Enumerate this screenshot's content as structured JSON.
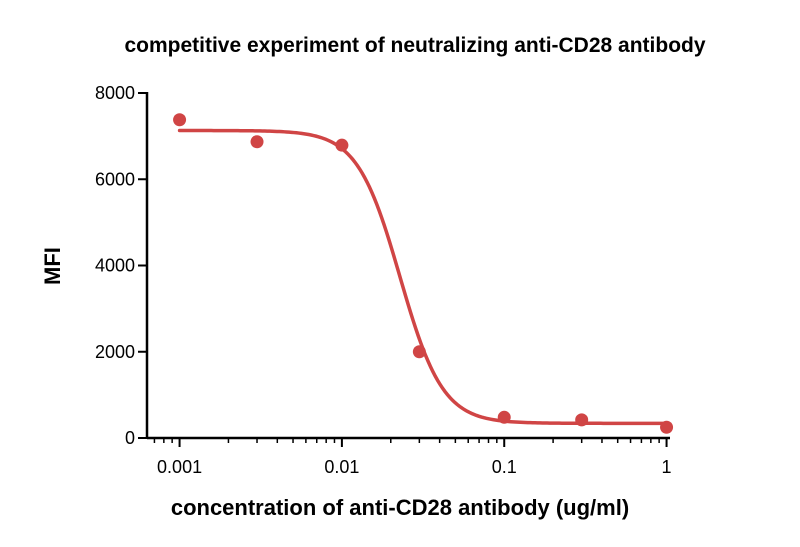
{
  "chart_data": {
    "type": "scatter",
    "title": "competitive experiment of neutralizing anti-CD28 antibody",
    "xlabel": "concentration of anti-CD28 antibody (ug/ml)",
    "ylabel": "MFI",
    "x_scale": "log",
    "xlim": [
      0.00063,
      1.05
    ],
    "ylim": [
      0,
      8000
    ],
    "x_ticks": [
      0.001,
      0.01,
      0.1,
      1
    ],
    "x_tick_labels": [
      "0.001",
      "0.01",
      "0.1",
      "1"
    ],
    "y_ticks": [
      0,
      2000,
      4000,
      6000,
      8000
    ],
    "y_tick_labels": [
      "0",
      "2000",
      "4000",
      "6000",
      "8000"
    ],
    "grid": false,
    "color": "#d04545",
    "points": [
      {
        "x": 0.001,
        "y": 7380
      },
      {
        "x": 0.003,
        "y": 6870
      },
      {
        "x": 0.01,
        "y": 6790
      },
      {
        "x": 0.03,
        "y": 2000
      },
      {
        "x": 0.1,
        "y": 480
      },
      {
        "x": 0.3,
        "y": 420
      },
      {
        "x": 1,
        "y": 250
      }
    ],
    "fit": {
      "type": "sigmoidal dose-response",
      "top": 7130,
      "bottom": 340,
      "ec50": 0.0228,
      "hill_slope": 3.3
    }
  }
}
